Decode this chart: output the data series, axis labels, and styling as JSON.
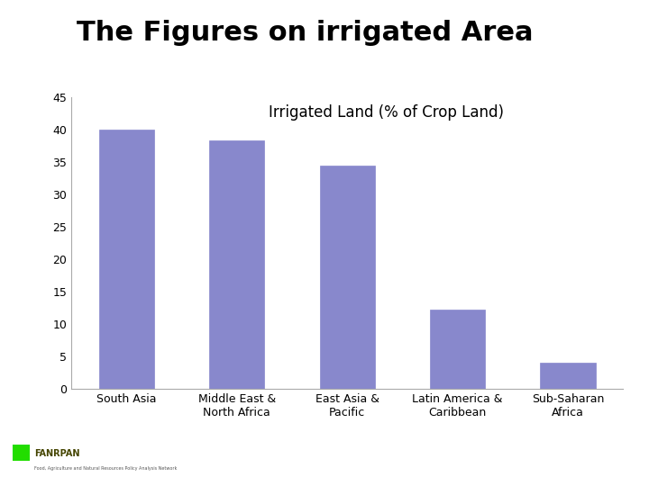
{
  "title": "The Figures on irrigated Area",
  "chart_title": "Irrigated Land (% of Crop Land)",
  "categories": [
    "South Asia",
    "Middle East &\nNorth Africa",
    "East Asia &\nPacific",
    "Latin America &\nCaribbean",
    "Sub-Saharan\nAfrica"
  ],
  "values": [
    40,
    38.3,
    34.5,
    12.2,
    4.0
  ],
  "bar_color": "#8888cc",
  "background_color": "#ffffff",
  "title_color": "#000000",
  "title_fontsize": 22,
  "chart_title_fontsize": 12,
  "tick_fontsize": 9,
  "xlabel_fontsize": 9,
  "ylim": [
    0,
    45
  ],
  "yticks": [
    0,
    5,
    10,
    15,
    20,
    25,
    30,
    35,
    40,
    45
  ],
  "green_color": "#22dd00",
  "spine_color": "#aaaaaa"
}
